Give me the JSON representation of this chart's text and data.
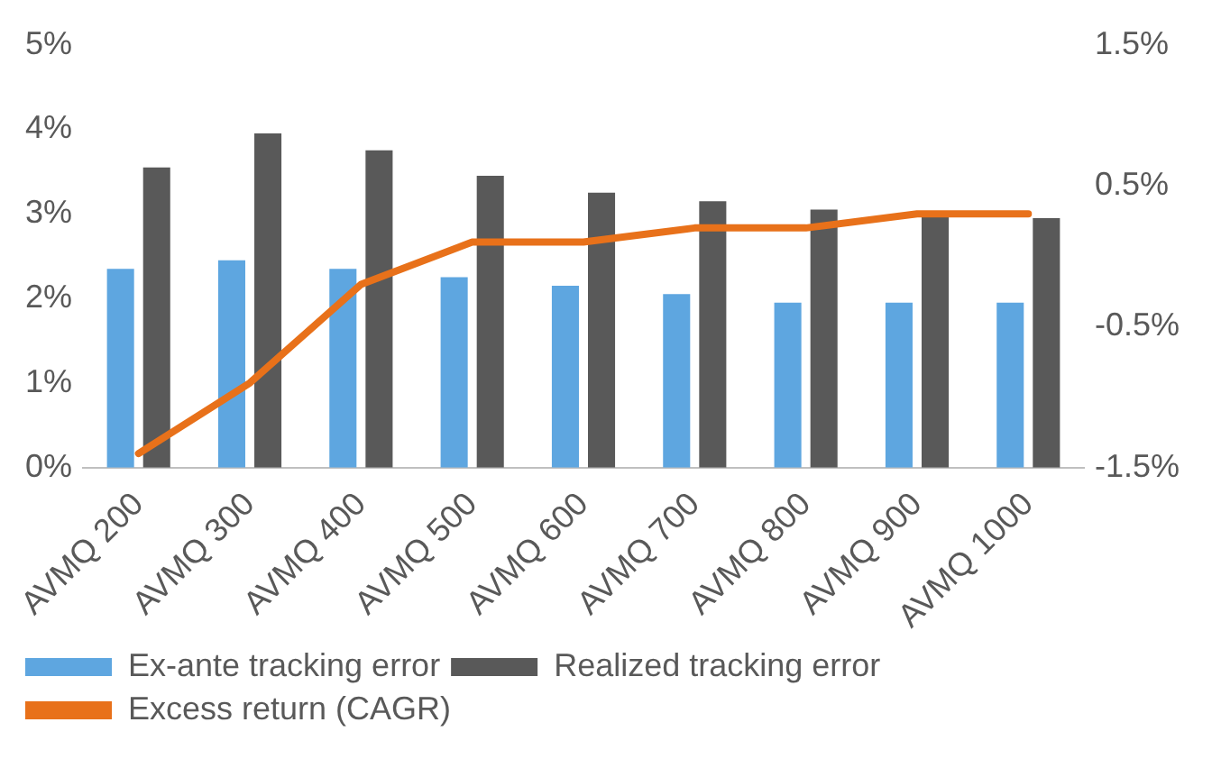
{
  "chart_data": {
    "type": "bar",
    "categories": [
      "AVMQ 200",
      "AVMQ 300",
      "AVMQ 400",
      "AVMQ 500",
      "AVMQ 600",
      "AVMQ 700",
      "AVMQ 800",
      "AVMQ 900",
      "AVMQ 1000"
    ],
    "series": [
      {
        "name": "Ex-ante tracking error",
        "color": "#5ea6e0",
        "values": [
          2.35,
          2.45,
          2.35,
          2.25,
          2.15,
          2.05,
          1.95,
          1.95,
          1.95
        ]
      },
      {
        "name": "Realized tracking error",
        "color": "#595959",
        "values": [
          3.55,
          3.95,
          3.75,
          3.45,
          3.25,
          3.15,
          3.05,
          3.0,
          2.95
        ]
      },
      {
        "name": "Excess return (CAGR)",
        "type": "line",
        "axis": "y2",
        "color": "#e8711a",
        "values": [
          -1.4,
          -0.9,
          -0.2,
          0.1,
          0.1,
          0.2,
          0.2,
          0.3,
          0.3
        ]
      }
    ],
    "ylim": [
      0,
      5
    ],
    "yticks": [
      {
        "value": 0,
        "label": "0%"
      },
      {
        "value": 1,
        "label": "1%"
      },
      {
        "value": 2,
        "label": "2%"
      },
      {
        "value": 3,
        "label": "3%"
      },
      {
        "value": 4,
        "label": "4%"
      },
      {
        "value": 5,
        "label": "5%"
      }
    ],
    "y2lim": [
      -1.5,
      1.5
    ],
    "y2ticks": [
      {
        "value": -1.5,
        "label": "-1.5%"
      },
      {
        "value": -0.5,
        "label": "-0.5%"
      },
      {
        "value": 0.5,
        "label": "0.5%"
      },
      {
        "value": 1.5,
        "label": "1.5%"
      }
    ],
    "grid": false,
    "legend": "bottom",
    "marker": "none",
    "line_style": "solid"
  }
}
